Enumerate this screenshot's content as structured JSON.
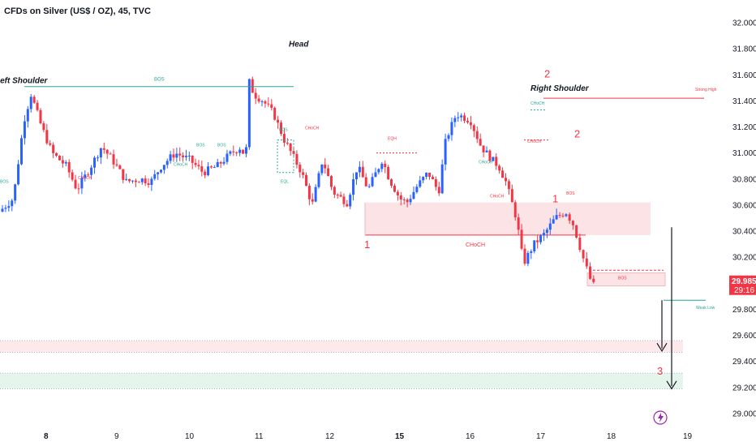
{
  "header": {
    "symbol": "CFDs on Silver (US$ / OZ), 45, TVC"
  },
  "colors": {
    "up": "#2962ff",
    "down": "#f23645",
    "neutral": "#787b86",
    "structure_green": "#26a69a"
  },
  "price_badge": {
    "price": "29.985",
    "countdown": "29:16"
  },
  "chart_data": {
    "type": "candlestick",
    "title": "CFDs on Silver (US$ / OZ), 45, TVC",
    "ylim": [
      29.0,
      32.0
    ],
    "y_ticks": [
      "32.000",
      "31.800",
      "31.600",
      "31.400",
      "31.200",
      "31.000",
      "30.800",
      "30.600",
      "30.400",
      "30.200",
      "29.985",
      "29.800",
      "29.600",
      "29.400",
      "29.200",
      "29.000"
    ],
    "x_ticks": [
      {
        "label": "8",
        "bold": true
      },
      {
        "label": "9",
        "bold": false
      },
      {
        "label": "10",
        "bold": false
      },
      {
        "label": "11",
        "bold": false
      },
      {
        "label": "12",
        "bold": false
      },
      {
        "label": "15",
        "bold": true
      },
      {
        "label": "16",
        "bold": false
      },
      {
        "label": "17",
        "bold": false
      },
      {
        "label": "18",
        "bold": false
      },
      {
        "label": "19",
        "bold": false
      }
    ],
    "price_path": [
      [
        0,
        30.55
      ],
      [
        0.2,
        30.65
      ],
      [
        0.35,
        31.25
      ],
      [
        0.45,
        31.45
      ],
      [
        0.6,
        31.2
      ],
      [
        0.75,
        31.0
      ],
      [
        0.95,
        30.9
      ],
      [
        1.1,
        30.72
      ],
      [
        1.25,
        30.85
      ],
      [
        1.45,
        31.05
      ],
      [
        1.6,
        30.95
      ],
      [
        1.8,
        30.78
      ],
      [
        2.0,
        30.8
      ],
      [
        2.15,
        30.78
      ],
      [
        2.3,
        30.9
      ],
      [
        2.5,
        31.0
      ],
      [
        2.7,
        30.95
      ],
      [
        2.9,
        30.85
      ],
      [
        3.1,
        30.9
      ],
      [
        3.3,
        31.0
      ],
      [
        3.45,
        31.05
      ],
      [
        3.5,
        30.9
      ],
      [
        3.55,
        31.55
      ],
      [
        3.62,
        31.45
      ],
      [
        3.75,
        31.4
      ],
      [
        3.9,
        31.3
      ],
      [
        4.05,
        31.1
      ],
      [
        4.2,
        30.95
      ],
      [
        4.3,
        30.85
      ],
      [
        4.45,
        30.6
      ],
      [
        4.6,
        30.95
      ],
      [
        4.75,
        30.7
      ],
      [
        4.95,
        30.62
      ],
      [
        5.1,
        30.9
      ],
      [
        5.25,
        30.72
      ],
      [
        5.45,
        30.95
      ],
      [
        5.55,
        30.8
      ],
      [
        5.7,
        30.65
      ],
      [
        5.8,
        30.62
      ],
      [
        5.95,
        30.75
      ],
      [
        6.1,
        30.85
      ],
      [
        6.25,
        30.7
      ],
      [
        6.35,
        31.1
      ],
      [
        6.5,
        31.3
      ],
      [
        6.7,
        31.25
      ],
      [
        6.85,
        31.05
      ],
      [
        7.0,
        30.95
      ],
      [
        7.1,
        30.9
      ],
      [
        7.2,
        30.78
      ],
      [
        7.35,
        30.5
      ],
      [
        7.45,
        30.15
      ],
      [
        7.6,
        30.3
      ],
      [
        7.75,
        30.38
      ],
      [
        7.9,
        30.5
      ],
      [
        8.05,
        30.55
      ],
      [
        8.15,
        30.45
      ],
      [
        8.3,
        30.15
      ],
      [
        8.4,
        29.985
      ]
    ],
    "annotations": [
      {
        "text": "Left Shoulder",
        "kind": "pattern"
      },
      {
        "text": "Head",
        "kind": "pattern"
      },
      {
        "text": "Right Shoulder",
        "kind": "pattern"
      },
      {
        "text": "BOS",
        "kind": "structure"
      },
      {
        "text": "CHoCH",
        "kind": "structure"
      },
      {
        "text": "EQL",
        "kind": "structure"
      },
      {
        "text": "EQH",
        "kind": "structure"
      },
      {
        "text": "Strong High",
        "kind": "level"
      },
      {
        "text": "Weak Low",
        "kind": "level"
      },
      {
        "text": "1",
        "kind": "wave"
      },
      {
        "text": "2",
        "kind": "wave"
      },
      {
        "text": "3",
        "kind": "wave"
      }
    ]
  }
}
